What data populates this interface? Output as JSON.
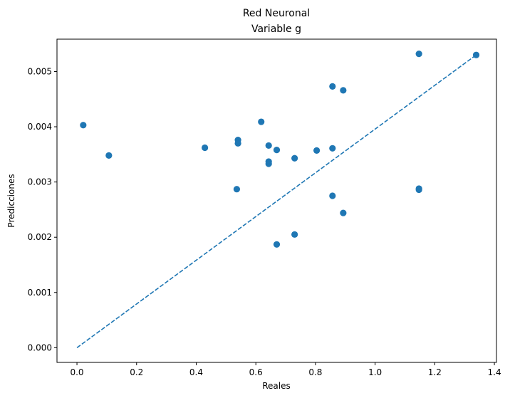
{
  "chart_data": {
    "type": "scatter",
    "title": "Red Neuronal",
    "subtitle": "Variable g",
    "xlabel": "Reales",
    "ylabel": "Predicciones",
    "xlim": [
      -0.067,
      1.407
    ],
    "ylim": [
      -0.000266,
      0.005586
    ],
    "xticks": [
      0.0,
      0.2,
      0.4,
      0.6,
      0.8,
      1.0,
      1.2,
      1.4
    ],
    "xtick_labels": [
      "0.0",
      "0.2",
      "0.4",
      "0.6",
      "0.8",
      "1.0",
      "1.2",
      "1.4"
    ],
    "yticks": [
      0.0,
      0.001,
      0.002,
      0.003,
      0.004,
      0.005
    ],
    "ytick_labels": [
      "0.000",
      "0.001",
      "0.002",
      "0.003",
      "0.004",
      "0.005"
    ],
    "grid": false,
    "colors": {
      "points": "#1f77b4",
      "line": "#1f77b4"
    },
    "points": {
      "x": [
        0.021,
        0.107,
        0.429,
        0.536,
        0.54,
        0.54,
        0.618,
        0.643,
        0.643,
        0.643,
        0.67,
        0.67,
        0.73,
        0.73,
        0.804,
        0.857,
        0.857,
        0.857,
        0.893,
        0.893,
        1.147,
        1.147,
        1.147,
        1.339
      ],
      "y": [
        0.00403,
        0.00348,
        0.00362,
        0.00287,
        0.00376,
        0.0037,
        0.00409,
        0.00366,
        0.00337,
        0.00333,
        0.00358,
        0.00187,
        0.00343,
        0.00205,
        0.00357,
        0.00473,
        0.00361,
        0.00275,
        0.00466,
        0.00244,
        0.00532,
        0.00288,
        0.00286,
        0.0053
      ]
    },
    "reference_line": {
      "x": [
        0.0,
        1.339
      ],
      "y": [
        0.0,
        0.0053
      ],
      "style": "dashed"
    }
  }
}
